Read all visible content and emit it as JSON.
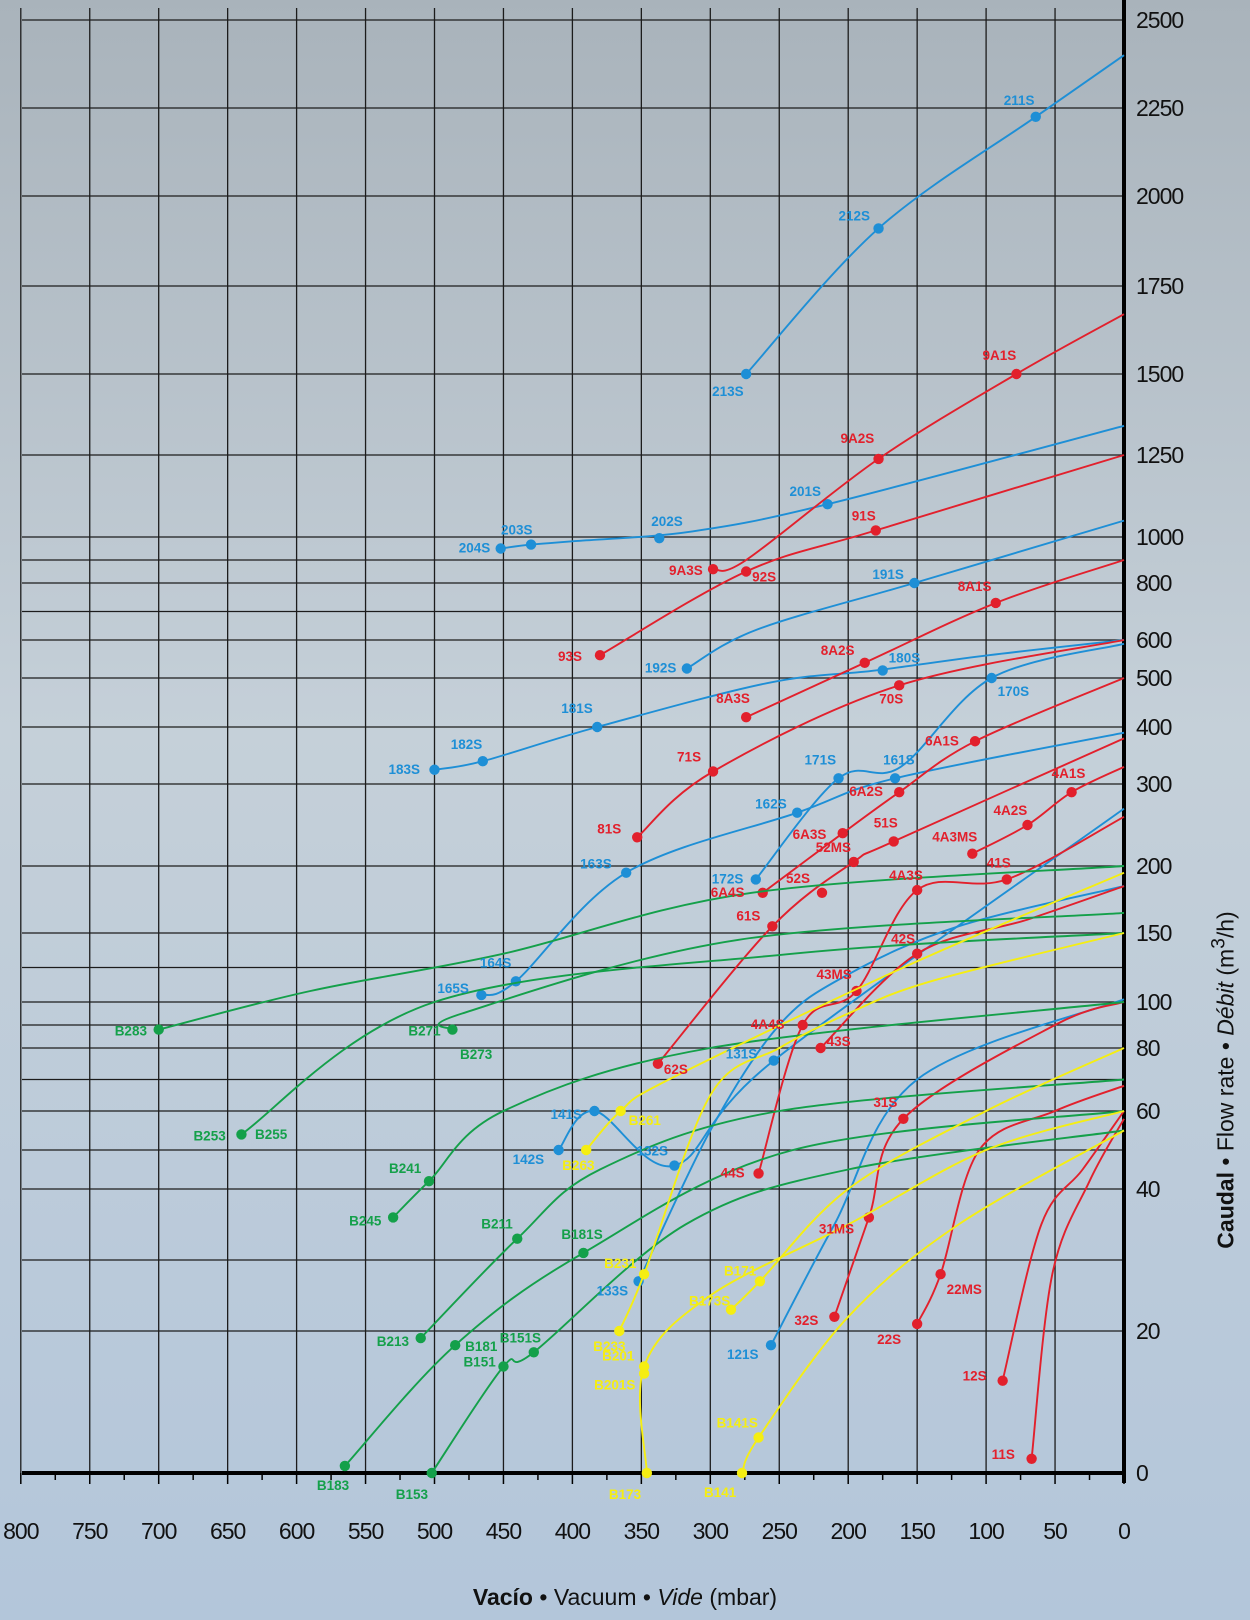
{
  "chart_data": {
    "type": "line",
    "xlabel": {
      "parts": [
        "Vacío",
        " • ",
        "Vacuum",
        " • ",
        "Vide",
        " (mbar)"
      ]
    },
    "ylabel": {
      "parts": [
        "Caudal",
        " • ",
        "Flow rate",
        " • ",
        "Débit",
        " (m",
        "3",
        "/h)"
      ]
    },
    "x_direction": "reversed",
    "xlim": [
      0,
      800
    ],
    "y_scale": "piecewise",
    "y_ticks": [
      "0",
      "20",
      "40",
      "60",
      "80",
      "100",
      "150",
      "200",
      "300",
      "400",
      "500",
      "600",
      "800",
      "1000",
      "1250",
      "1500",
      "1750",
      "2000",
      "2250",
      "2500"
    ],
    "x_ticks": [
      "800",
      "750",
      "700",
      "650",
      "600",
      "550",
      "500",
      "450",
      "400",
      "350",
      "300",
      "250",
      "200",
      "150",
      "100",
      "50",
      "0"
    ],
    "colors": {
      "blue": "#1e8fd6",
      "red": "#e2202c",
      "green": "#14a04a",
      "yellow": "#f5ee12"
    },
    "series": [
      {
        "color": "blue",
        "x": [
          0,
          64,
          178,
          274
        ],
        "y": [
          2400,
          2225,
          1910,
          1500
        ],
        "points": [
          {
            "label": "211S",
            "x": 64,
            "y": 2225
          },
          {
            "label": "212S",
            "x": 178,
            "y": 1910
          },
          {
            "label": "213S",
            "x": 274,
            "y": 1500
          }
        ]
      },
      {
        "color": "blue",
        "x": [
          0,
          215,
          313,
          398,
          430,
          452
        ],
        "y": [
          1340,
          1100,
          1017,
          982,
          967,
          950
        ],
        "points": [
          {
            "label": "201S",
            "x": 215,
            "y": 1100
          },
          {
            "label": "202S",
            "x": 337,
            "y": 995
          },
          {
            "label": "203S",
            "x": 430,
            "y": 967
          },
          {
            "label": "204S",
            "x": 452,
            "y": 950
          }
        ]
      },
      {
        "color": "blue",
        "x": [
          0,
          152,
          266,
          317
        ],
        "y": [
          1050,
          800,
          637,
          525
        ],
        "points": [
          {
            "label": "191S",
            "x": 152,
            "y": 800
          },
          {
            "label": "192S",
            "x": 317,
            "y": 525
          }
        ]
      },
      {
        "color": "blue",
        "x": [
          0,
          98,
          180,
          258,
          382,
          465,
          500
        ],
        "y": [
          600,
          560,
          520,
          490,
          400,
          340,
          325
        ],
        "points": [
          {
            "label": "180S",
            "x": 175,
            "y": 520
          },
          {
            "label": "181S",
            "x": 382,
            "y": 400
          },
          {
            "label": "182S",
            "x": 465,
            "y": 340
          },
          {
            "label": "183S",
            "x": 500,
            "y": 325
          }
        ]
      },
      {
        "color": "blue",
        "x": [
          0,
          96,
          162,
          207,
          267
        ],
        "y": [
          590,
          500,
          330,
          310,
          190
        ],
        "points": [
          {
            "label": "170S",
            "x": 96,
            "y": 500
          },
          {
            "label": "171S",
            "x": 207,
            "y": 310
          },
          {
            "label": "172S",
            "x": 267,
            "y": 190
          }
        ]
      },
      {
        "color": "blue",
        "x": [
          0,
          166,
          237,
          361,
          441,
          466
        ],
        "y": [
          390,
          310,
          265,
          195,
          115,
          105
        ],
        "points": [
          {
            "label": "161S",
            "x": 166,
            "y": 310
          },
          {
            "label": "162S",
            "x": 237,
            "y": 265
          },
          {
            "label": "163S",
            "x": 361,
            "y": 195
          },
          {
            "label": "164S",
            "x": 441,
            "y": 115
          },
          {
            "label": "165S",
            "x": 466,
            "y": 105
          }
        ]
      },
      {
        "color": "blue",
        "x": [
          0,
          254,
          326,
          384,
          410
        ],
        "y": [
          270,
          76,
          46,
          60,
          50
        ],
        "points": [
          {
            "label": "131S",
            "x": 254,
            "y": 76
          },
          {
            "label": "132S",
            "x": 326,
            "y": 46
          },
          {
            "label": "141S",
            "x": 384,
            "y": 60
          },
          {
            "label": "142S",
            "x": 410,
            "y": 50
          }
        ]
      },
      {
        "color": "blue",
        "x": [
          0,
          120,
          200,
          250,
          300,
          352
        ],
        "y": [
          185,
          155,
          120,
          90,
          55,
          27
        ],
        "points": [
          {
            "label": "133S",
            "x": 352,
            "y": 27
          }
        ]
      },
      {
        "color": "blue",
        "x": [
          0,
          150,
          210,
          256
        ],
        "y": [
          102,
          70,
          35,
          18
        ],
        "points": [
          {
            "label": "121S",
            "x": 256,
            "y": 18
          }
        ]
      },
      {
        "color": "red",
        "x": [
          0,
          78,
          178,
          274,
          298
        ],
        "y": [
          1670,
          1500,
          1238,
          900,
          860
        ],
        "points": [
          {
            "label": "9A1S",
            "x": 78,
            "y": 1500
          },
          {
            "label": "9A2S",
            "x": 178,
            "y": 1238
          },
          {
            "label": "9A3S",
            "x": 298,
            "y": 860
          }
        ]
      },
      {
        "color": "red",
        "x": [
          0,
          180,
          274,
          380
        ],
        "y": [
          1250,
          1020,
          850,
          560
        ],
        "points": [
          {
            "label": "91S",
            "x": 180,
            "y": 1020
          },
          {
            "label": "92S",
            "x": 274,
            "y": 850
          },
          {
            "label": "93S",
            "x": 380,
            "y": 560
          }
        ]
      },
      {
        "color": "red",
        "x": [
          0,
          93,
          188,
          274
        ],
        "y": [
          900,
          730,
          540,
          420
        ],
        "points": [
          {
            "label": "8A1S",
            "x": 93,
            "y": 730
          },
          {
            "label": "8A2S",
            "x": 188,
            "y": 540
          },
          {
            "label": "8A3S",
            "x": 274,
            "y": 420
          }
        ]
      },
      {
        "color": "red",
        "x": [
          0,
          163,
          298,
          353
        ],
        "y": [
          600,
          485,
          322,
          235
        ],
        "points": [
          {
            "label": "70S",
            "x": 163,
            "y": 485
          },
          {
            "label": "71S",
            "x": 298,
            "y": 322
          },
          {
            "label": "81S",
            "x": 353,
            "y": 235
          }
        ]
      },
      {
        "color": "red",
        "x": [
          0,
          108,
          163,
          204,
          262
        ],
        "y": [
          500,
          375,
          290,
          240,
          180
        ],
        "points": [
          {
            "label": "6A1S",
            "x": 108,
            "y": 375
          },
          {
            "label": "6A2S",
            "x": 163,
            "y": 290
          },
          {
            "label": "6A3S",
            "x": 204,
            "y": 240
          },
          {
            "label": "6A4S",
            "x": 262,
            "y": 180
          }
        ]
      },
      {
        "color": "red",
        "x": [
          0,
          167,
          196,
          255,
          338
        ],
        "y": [
          380,
          230,
          205,
          155,
          75
        ],
        "points": [
          {
            "label": "51S",
            "x": 167,
            "y": 230
          },
          {
            "label": "52MS",
            "x": 196,
            "y": 205
          },
          {
            "label": "52S",
            "x": 219,
            "y": 180
          },
          {
            "label": "61S",
            "x": 255,
            "y": 155
          },
          {
            "label": "62S",
            "x": 338,
            "y": 75
          }
        ]
      },
      {
        "color": "red",
        "x": [
          0,
          38,
          70,
          110
        ],
        "y": [
          330,
          290,
          250,
          215
        ],
        "points": [
          {
            "label": "4A1S",
            "x": 38,
            "y": 290
          },
          {
            "label": "4A2S",
            "x": 70,
            "y": 250
          },
          {
            "label": "4A3MS",
            "x": 110,
            "y": 215
          }
        ]
      },
      {
        "color": "red",
        "x": [
          0,
          85,
          150,
          194,
          233,
          265
        ],
        "y": [
          260,
          190,
          182,
          108,
          90,
          44
        ],
        "points": [
          {
            "label": "41S",
            "x": 85,
            "y": 190
          },
          {
            "label": "4A3S",
            "x": 150,
            "y": 182
          },
          {
            "label": "43MS",
            "x": 194,
            "y": 108
          },
          {
            "label": "4A4S",
            "x": 233,
            "y": 90
          },
          {
            "label": "44S",
            "x": 265,
            "y": 44
          }
        ]
      },
      {
        "color": "red",
        "x": [
          0,
          70,
          150,
          220
        ],
        "y": [
          185,
          160,
          135,
          80
        ],
        "points": [
          {
            "label": "42S",
            "x": 150,
            "y": 135
          },
          {
            "label": "43S",
            "x": 220,
            "y": 80
          }
        ]
      },
      {
        "color": "red",
        "x": [
          0,
          50,
          160,
          185,
          210
        ],
        "y": [
          100,
          90,
          58,
          36,
          22
        ],
        "points": [
          {
            "label": "31S",
            "x": 160,
            "y": 58
          },
          {
            "label": "31MS",
            "x": 185,
            "y": 36
          },
          {
            "label": "32S",
            "x": 210,
            "y": 22
          }
        ]
      },
      {
        "color": "red",
        "x": [
          0,
          50,
          105,
          133,
          150
        ],
        "y": [
          68,
          60,
          50,
          28,
          21
        ],
        "points": [
          {
            "label": "22MS",
            "x": 133,
            "y": 28
          },
          {
            "label": "22S",
            "x": 150,
            "y": 21
          }
        ]
      },
      {
        "color": "red",
        "x": [
          0,
          30,
          60,
          88
        ],
        "y": [
          60,
          45,
          35,
          13
        ],
        "points": [
          {
            "label": "12S",
            "x": 88,
            "y": 13
          }
        ]
      },
      {
        "color": "red",
        "x": [
          0,
          25,
          52,
          67
        ],
        "y": [
          58,
          42,
          28,
          2
        ],
        "points": [
          {
            "label": "11S",
            "x": 67,
            "y": 2
          }
        ]
      },
      {
        "color": "green",
        "x": [
          0,
          270,
          450,
          590,
          700
        ],
        "y": [
          200,
          180,
          135,
          108,
          88
        ],
        "points": [
          {
            "label": "B283",
            "x": 700,
            "y": 88
          }
        ]
      },
      {
        "color": "green",
        "x": [
          0,
          280,
          480,
          487
        ],
        "y": [
          165,
          145,
          95,
          88
        ],
        "points": [
          {
            "label": "B271",
            "x": 487,
            "y": 88
          }
        ]
      },
      {
        "color": "green",
        "x": [
          0,
          240,
          500,
          640
        ],
        "y": [
          150,
          135,
          100,
          54
        ],
        "points": [
          {
            "label": "B253",
            "x": 640,
            "y": 54
          }
        ]
      },
      {
        "color": "green",
        "x": [
          0,
          300,
          450,
          504,
          530
        ],
        "y": [
          100,
          80,
          60,
          42,
          36
        ],
        "points": [
          {
            "label": "B241",
            "x": 504,
            "y": 42
          },
          {
            "label": "B245",
            "x": 530,
            "y": 36
          }
        ]
      },
      {
        "color": "green",
        "x": [
          0,
          250,
          380,
          440,
          510
        ],
        "y": [
          70,
          60,
          45,
          33,
          19
        ],
        "points": [
          {
            "label": "B211",
            "x": 440,
            "y": 33
          },
          {
            "label": "B213",
            "x": 510,
            "y": 19
          }
        ]
      },
      {
        "color": "green",
        "x": [
          0,
          240,
          392,
          485,
          565
        ],
        "y": [
          60,
          50,
          31,
          18,
          1
        ],
        "points": [
          {
            "label": "B181S",
            "x": 392,
            "y": 31
          },
          {
            "label": "B181",
            "x": 485,
            "y": 18
          },
          {
            "label": "B183",
            "x": 565,
            "y": 1
          }
        ]
      },
      {
        "color": "green",
        "x": [
          0,
          200,
          318,
          428,
          450,
          502
        ],
        "y": [
          55,
          45,
          35,
          17,
          15,
          0
        ],
        "points": [
          {
            "label": "B151S",
            "x": 428,
            "y": 17
          },
          {
            "label": "B151",
            "x": 450,
            "y": 15
          },
          {
            "label": "B153",
            "x": 502,
            "y": 0
          }
        ]
      },
      {
        "color": "yellow",
        "x": [
          0,
          160,
          330,
          365,
          390
        ],
        "y": [
          195,
          125,
          70,
          60,
          50
        ],
        "points": [
          {
            "label": "B261",
            "x": 365,
            "y": 60
          },
          {
            "label": "B263",
            "x": 390,
            "y": 50
          }
        ]
      },
      {
        "color": "yellow",
        "x": [
          0,
          140,
          200,
          250,
          300,
          348,
          366
        ],
        "y": [
          150,
          115,
          95,
          80,
          65,
          28,
          20
        ],
        "points": [
          {
            "label": "B231",
            "x": 348,
            "y": 28
          },
          {
            "label": "B233",
            "x": 366,
            "y": 20
          }
        ]
      },
      {
        "color": "yellow",
        "x": [
          0,
          100,
          200,
          264,
          285
        ],
        "y": [
          80,
          60,
          40,
          27,
          23
        ],
        "points": [
          {
            "label": "B171",
            "x": 264,
            "y": 27
          },
          {
            "label": "B173S",
            "x": 285,
            "y": 23
          }
        ]
      },
      {
        "color": "yellow",
        "x": [
          0,
          100,
          200,
          300,
          348,
          346
        ],
        "y": [
          60,
          50,
          35,
          25,
          15,
          0
        ],
        "points": [
          {
            "label": "B201",
            "x": 348,
            "y": 15
          },
          {
            "label": "B201S",
            "x": 348,
            "y": 14
          },
          {
            "label": "B173",
            "x": 346,
            "y": 0
          }
        ]
      },
      {
        "color": "yellow",
        "x": [
          0,
          120,
          200,
          265,
          277
        ],
        "y": [
          55,
          35,
          22,
          5,
          0
        ],
        "points": [
          {
            "label": "B141S",
            "x": 265,
            "y": 5
          },
          {
            "label": "B141",
            "x": 277,
            "y": 0
          }
        ]
      }
    ],
    "extra_labels": [
      {
        "label": "B273",
        "color": "green"
      },
      {
        "label": "B255",
        "color": "green"
      }
    ]
  }
}
